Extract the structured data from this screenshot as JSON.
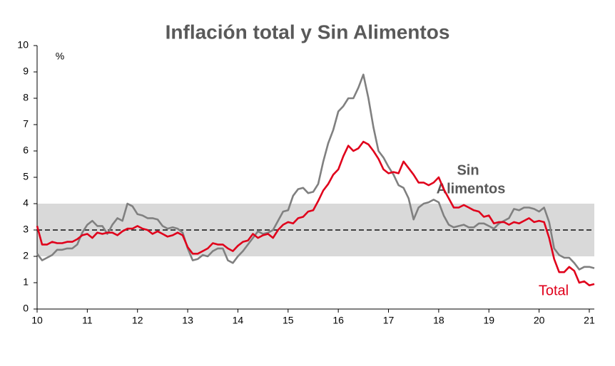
{
  "chart_data": {
    "type": "line",
    "title": "Inflación total y Sin Alimentos",
    "y_unit": "%",
    "annotations": [
      "Sin",
      "Alimentos",
      "Total"
    ],
    "target_band": {
      "low": 2,
      "high": 4,
      "color": "#d9d9d9"
    },
    "target_line": 3,
    "xlim": [
      10,
      21.1
    ],
    "ylim": [
      0,
      10
    ],
    "xticks": [
      10,
      11,
      12,
      13,
      14,
      15,
      16,
      17,
      18,
      19,
      20,
      21
    ],
    "yticks": [
      0,
      1,
      2,
      3,
      4,
      5,
      6,
      7,
      8,
      9,
      10
    ],
    "x": [
      10.0,
      10.1,
      10.2,
      10.3,
      10.4,
      10.5,
      10.6,
      10.7,
      10.8,
      10.9,
      11.0,
      11.1,
      11.2,
      11.3,
      11.4,
      11.5,
      11.6,
      11.7,
      11.8,
      11.9,
      12.0,
      12.1,
      12.2,
      12.3,
      12.4,
      12.5,
      12.6,
      12.7,
      12.8,
      12.9,
      13.0,
      13.1,
      13.2,
      13.3,
      13.4,
      13.5,
      13.6,
      13.7,
      13.8,
      13.9,
      14.0,
      14.1,
      14.2,
      14.3,
      14.4,
      14.5,
      14.6,
      14.7,
      14.8,
      14.9,
      15.0,
      15.1,
      15.2,
      15.3,
      15.4,
      15.5,
      15.6,
      15.7,
      15.8,
      15.9,
      16.0,
      16.1,
      16.2,
      16.3,
      16.4,
      16.5,
      16.6,
      16.7,
      16.8,
      16.9,
      17.0,
      17.1,
      17.2,
      17.3,
      17.4,
      17.5,
      17.6,
      17.7,
      17.8,
      17.9,
      18.0,
      18.1,
      18.2,
      18.3,
      18.4,
      18.5,
      18.6,
      18.7,
      18.8,
      18.9,
      19.0,
      19.1,
      19.2,
      19.3,
      19.4,
      19.5,
      19.6,
      19.7,
      19.8,
      19.9,
      20.0,
      20.1,
      20.2,
      20.3,
      20.4,
      20.5,
      20.6,
      20.7,
      20.8,
      20.9,
      21.0,
      21.1
    ],
    "series": [
      {
        "name": "Sin Alimentos",
        "color": "#808080",
        "values": [
          2.1,
          1.85,
          1.95,
          2.05,
          2.25,
          2.25,
          2.3,
          2.3,
          2.45,
          2.9,
          3.2,
          3.35,
          3.15,
          3.15,
          2.85,
          3.2,
          3.45,
          3.35,
          4.0,
          3.9,
          3.6,
          3.55,
          3.45,
          3.45,
          3.4,
          3.15,
          3.05,
          3.1,
          3.05,
          2.9,
          2.3,
          1.85,
          1.9,
          2.05,
          2.0,
          2.2,
          2.3,
          2.3,
          1.85,
          1.75,
          2.0,
          2.2,
          2.45,
          2.7,
          2.95,
          2.85,
          2.9,
          3.0,
          3.35,
          3.7,
          3.75,
          4.3,
          4.55,
          4.6,
          4.4,
          4.45,
          4.75,
          5.6,
          6.3,
          6.8,
          7.5,
          7.7,
          8.0,
          8.0,
          8.4,
          8.9,
          8.0,
          6.9,
          6.0,
          5.75,
          5.4,
          5.1,
          4.7,
          4.6,
          4.2,
          3.4,
          3.85,
          4.0,
          4.05,
          4.15,
          4.05,
          3.55,
          3.2,
          3.1,
          3.15,
          3.2,
          3.1,
          3.1,
          3.25,
          3.25,
          3.15,
          3.05,
          3.25,
          3.35,
          3.45,
          3.8,
          3.75,
          3.85,
          3.85,
          3.8,
          3.7,
          3.85,
          3.3,
          2.3,
          2.05,
          1.95,
          1.95,
          1.75,
          1.5,
          1.6,
          1.6,
          1.55
        ]
      },
      {
        "name": "Total",
        "color": "#e0001b",
        "values": [
          3.15,
          2.45,
          2.45,
          2.55,
          2.5,
          2.5,
          2.55,
          2.55,
          2.65,
          2.8,
          2.85,
          2.7,
          2.9,
          2.85,
          2.9,
          2.9,
          2.8,
          2.95,
          3.05,
          3.05,
          3.15,
          3.05,
          3.0,
          2.85,
          2.95,
          2.85,
          2.75,
          2.8,
          2.9,
          2.8,
          2.35,
          2.1,
          2.1,
          2.2,
          2.3,
          2.5,
          2.45,
          2.45,
          2.3,
          2.2,
          2.4,
          2.55,
          2.6,
          2.85,
          2.7,
          2.8,
          2.85,
          2.7,
          3.0,
          3.2,
          3.3,
          3.25,
          3.45,
          3.5,
          3.7,
          3.75,
          4.1,
          4.5,
          4.75,
          5.1,
          5.3,
          5.8,
          6.2,
          6.0,
          6.1,
          6.35,
          6.25,
          6.0,
          5.7,
          5.3,
          5.15,
          5.2,
          5.15,
          5.6,
          5.35,
          5.1,
          4.8,
          4.8,
          4.7,
          4.8,
          5.0,
          4.55,
          4.2,
          3.85,
          3.85,
          3.95,
          3.85,
          3.75,
          3.7,
          3.5,
          3.55,
          3.25,
          3.3,
          3.3,
          3.2,
          3.3,
          3.25,
          3.35,
          3.45,
          3.3,
          3.35,
          3.3,
          2.7,
          1.9,
          1.4,
          1.4,
          1.6,
          1.45,
          1.0,
          1.05,
          0.9,
          0.95
        ]
      }
    ]
  }
}
